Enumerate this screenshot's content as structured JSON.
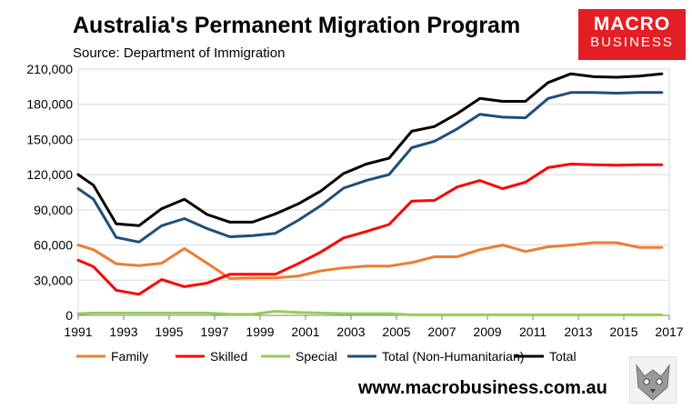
{
  "header": {
    "title": "Australia's Permanent Migration Program",
    "subtitle": "Source: Department of Immigration"
  },
  "logo": {
    "line1": "MACRO",
    "line2": "BUSINESS",
    "color": "#e31e24"
  },
  "footer": {
    "website": "www.macrobusiness.com.au"
  },
  "chart_data": {
    "type": "line",
    "title": "Australia's Permanent Migration Program",
    "xlabel": "",
    "ylabel": "",
    "xlim": [
      1991,
      2017
    ],
    "ylim": [
      0,
      210000
    ],
    "x_ticks": [
      1991,
      1993,
      1995,
      1997,
      1999,
      2001,
      2003,
      2005,
      2007,
      2009,
      2011,
      2013,
      2015,
      2017
    ],
    "y_ticks": [
      0,
      30000,
      60000,
      90000,
      120000,
      150000,
      180000,
      210000
    ],
    "y_tick_labels": [
      "0",
      "30,000",
      "60,000",
      "90,000",
      "120,000",
      "150,000",
      "180,000",
      "210,000"
    ],
    "grid": true,
    "legend_position": "bottom",
    "x": [
      1991,
      1991.67,
      1992.67,
      1993.67,
      1994.67,
      1995.67,
      1996.67,
      1997.67,
      1998.67,
      1999.67,
      2000.67,
      2001.67,
      2002.67,
      2003.67,
      2004.67,
      2005.67,
      2006.67,
      2007.67,
      2008.67,
      2009.67,
      2010.67,
      2011.67,
      2012.67,
      2013.67,
      2014.67,
      2015.67,
      2016.67
    ],
    "series": [
      {
        "name": "Family",
        "color": "#ed7d31",
        "values": [
          60000,
          56000,
          44000,
          42500,
          44500,
          57000,
          44500,
          31500,
          32000,
          32000,
          33500,
          38000,
          40500,
          42000,
          42000,
          45000,
          50000,
          50000,
          56000,
          60000,
          54500,
          58500,
          60000,
          62000,
          62000,
          58000,
          58000
        ]
      },
      {
        "name": "Skilled",
        "color": "#ff0000",
        "values": [
          47000,
          41500,
          21500,
          18000,
          30500,
          24500,
          27500,
          35000,
          35000,
          35000,
          44000,
          54000,
          66000,
          71500,
          77500,
          97500,
          98000,
          109500,
          115000,
          108000,
          113500,
          126000,
          129000,
          128500,
          128000,
          128500,
          128500
        ]
      },
      {
        "name": "Special",
        "color": "#92d050",
        "values": [
          1500,
          2000,
          2000,
          2000,
          2000,
          2000,
          2000,
          1000,
          1000,
          3500,
          2500,
          2000,
          1500,
          1500,
          1500,
          500,
          500,
          500,
          500,
          500,
          500,
          500,
          500,
          500,
          500,
          500,
          500
        ]
      },
      {
        "name": "Total (Non-Humanitarian)",
        "color": "#1f4e79",
        "values": [
          108000,
          99000,
          66500,
          62500,
          76500,
          82500,
          74000,
          67000,
          68000,
          70000,
          81000,
          93500,
          108500,
          115000,
          120000,
          143000,
          148500,
          159000,
          171500,
          169000,
          168500,
          185000,
          190000,
          190000,
          189500,
          190000,
          190000
        ]
      },
      {
        "name": "Total",
        "color": "#000000",
        "values": [
          120000,
          111000,
          78000,
          76500,
          91000,
          99000,
          86000,
          79500,
          79500,
          86500,
          95000,
          106000,
          121000,
          129000,
          134000,
          157000,
          161000,
          172000,
          185000,
          182500,
          182500,
          198500,
          206000,
          203500,
          203000,
          204000,
          206000
        ]
      }
    ]
  }
}
